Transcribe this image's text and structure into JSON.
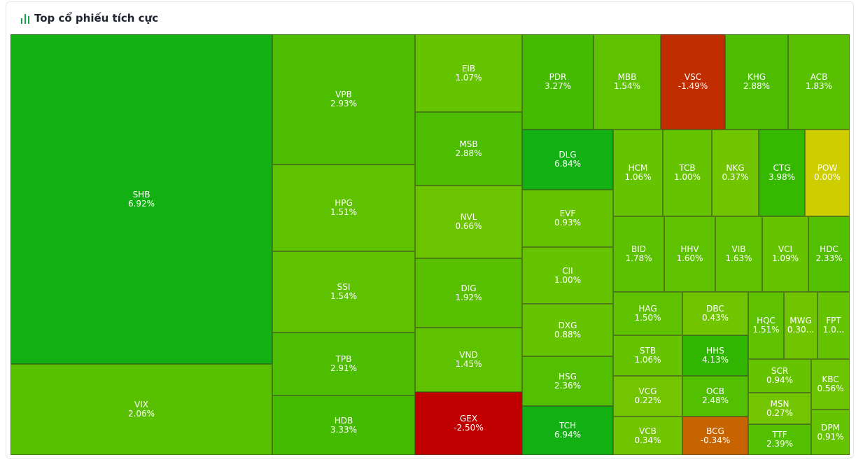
{
  "header": {
    "title": "Top cổ phiếu tích cực",
    "icon": "bar-chart-icon",
    "icon_color": "#16a34a"
  },
  "chart_data": {
    "type": "treemap",
    "title": "Top cổ phiếu tích cực",
    "tiles": [
      {
        "symbol": "SHB",
        "change": "6.92%",
        "color": "#12b012"
      },
      {
        "symbol": "VIX",
        "change": "2.06%",
        "color": "#58c000"
      },
      {
        "symbol": "VPB",
        "change": "2.93%",
        "color": "#4cbd00"
      },
      {
        "symbol": "HPG",
        "change": "1.51%",
        "color": "#5fc200"
      },
      {
        "symbol": "SSI",
        "change": "1.54%",
        "color": "#5fc200"
      },
      {
        "symbol": "TPB",
        "change": "2.91%",
        "color": "#4cbd00"
      },
      {
        "symbol": "HDB",
        "change": "3.33%",
        "color": "#44bb00"
      },
      {
        "symbol": "EIB",
        "change": "1.07%",
        "color": "#66c300"
      },
      {
        "symbol": "MSB",
        "change": "2.88%",
        "color": "#4cbd00"
      },
      {
        "symbol": "NVL",
        "change": "0.66%",
        "color": "#6cc400"
      },
      {
        "symbol": "DIG",
        "change": "1.92%",
        "color": "#58c000"
      },
      {
        "symbol": "VND",
        "change": "1.45%",
        "color": "#5fc200"
      },
      {
        "symbol": "GEX",
        "change": "-2.50%",
        "color": "#c00000"
      },
      {
        "symbol": "PDR",
        "change": "3.27%",
        "color": "#44bb00"
      },
      {
        "symbol": "MBB",
        "change": "1.54%",
        "color": "#5fc200"
      },
      {
        "symbol": "VSC",
        "change": "-1.49%",
        "color": "#c02d00"
      },
      {
        "symbol": "KHG",
        "change": "2.88%",
        "color": "#4cbd00"
      },
      {
        "symbol": "ACB",
        "change": "1.83%",
        "color": "#58c000"
      },
      {
        "symbol": "DLG",
        "change": "6.84%",
        "color": "#12b012"
      },
      {
        "symbol": "EVF",
        "change": "0.93%",
        "color": "#66c300"
      },
      {
        "symbol": "CII",
        "change": "1.00%",
        "color": "#66c300"
      },
      {
        "symbol": "DXG",
        "change": "0.88%",
        "color": "#66c300"
      },
      {
        "symbol": "HSG",
        "change": "2.36%",
        "color": "#52bf00"
      },
      {
        "symbol": "TCH",
        "change": "6.94%",
        "color": "#12b012"
      },
      {
        "symbol": "HCM",
        "change": "1.06%",
        "color": "#66c300"
      },
      {
        "symbol": "TCB",
        "change": "1.00%",
        "color": "#66c300"
      },
      {
        "symbol": "NKG",
        "change": "0.37%",
        "color": "#70c500"
      },
      {
        "symbol": "CTG",
        "change": "3.98%",
        "color": "#36b800"
      },
      {
        "symbol": "POW",
        "change": "0.00%",
        "color": "#cdcd00"
      },
      {
        "symbol": "BID",
        "change": "1.78%",
        "color": "#5cc100"
      },
      {
        "symbol": "HHV",
        "change": "1.60%",
        "color": "#5fc200"
      },
      {
        "symbol": "VIB",
        "change": "1.63%",
        "color": "#5fc200"
      },
      {
        "symbol": "VCI",
        "change": "1.09%",
        "color": "#66c300"
      },
      {
        "symbol": "HDC",
        "change": "2.33%",
        "color": "#52bf00"
      },
      {
        "symbol": "HAG",
        "change": "1.50%",
        "color": "#5fc200"
      },
      {
        "symbol": "DBC",
        "change": "0.43%",
        "color": "#70c500"
      },
      {
        "symbol": "STB",
        "change": "1.06%",
        "color": "#66c300"
      },
      {
        "symbol": "HHS",
        "change": "4.13%",
        "color": "#30b600"
      },
      {
        "symbol": "VCG",
        "change": "0.22%",
        "color": "#72c500"
      },
      {
        "symbol": "OCB",
        "change": "2.48%",
        "color": "#52bf00"
      },
      {
        "symbol": "VCB",
        "change": "0.34%",
        "color": "#70c500"
      },
      {
        "symbol": "BCG",
        "change": "-0.34%",
        "color": "#c86400"
      },
      {
        "symbol": "HQC",
        "change": "1.51%",
        "color": "#5fc200"
      },
      {
        "symbol": "MWG",
        "change": "0.30...",
        "color": "#70c500"
      },
      {
        "symbol": "FPT",
        "change": "1.0...",
        "color": "#66c300"
      },
      {
        "symbol": "SCR",
        "change": "0.94%",
        "color": "#66c300"
      },
      {
        "symbol": "KBC",
        "change": "0.56%",
        "color": "#6cc400"
      },
      {
        "symbol": "MSN",
        "change": "0.27%",
        "color": "#72c500"
      },
      {
        "symbol": "TTF",
        "change": "2.39%",
        "color": "#52bf00"
      },
      {
        "symbol": "DPM",
        "change": "0.91%",
        "color": "#66c300"
      }
    ]
  }
}
